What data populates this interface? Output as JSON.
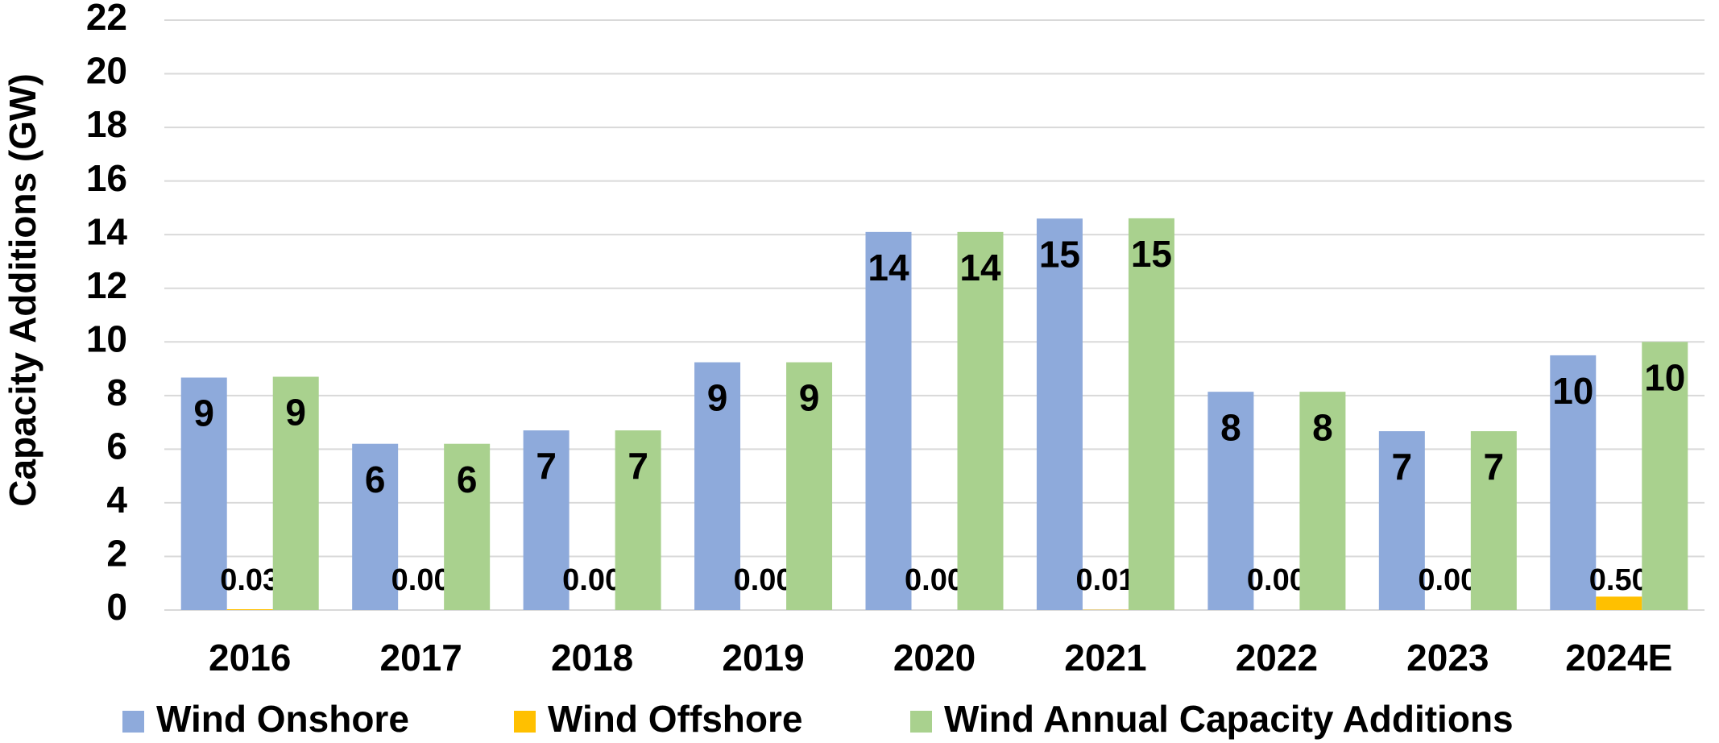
{
  "chart_data": {
    "type": "bar",
    "y_label": "Capacity Additions (GW)",
    "categories": [
      "2016",
      "2017",
      "2018",
      "2019",
      "2020",
      "2021",
      "2022",
      "2023",
      "2024E"
    ],
    "series": [
      {
        "name": "Wind Onshore",
        "color": "#8eaadb",
        "values": [
          8.67,
          6.2,
          6.7,
          9.24,
          14.1,
          14.6,
          8.14,
          6.67,
          9.5
        ],
        "value_labels": [
          "9",
          "6",
          "7",
          "9",
          "14",
          "15",
          "8",
          "7",
          "10"
        ]
      },
      {
        "name": "Wind Offshore",
        "color": "#ffc000",
        "values": [
          0.03,
          0,
          0,
          0,
          0,
          0.01,
          0,
          0,
          0.5
        ],
        "value_labels": [
          "0.03",
          "0.00",
          "0.00",
          "0.00",
          "0.00",
          "0.01",
          "0.00",
          "0.00",
          "0.50"
        ]
      },
      {
        "name": "Wind Annual Capacity Additions",
        "color": "#a9d18e",
        "values": [
          8.7,
          6.2,
          6.7,
          9.24,
          14.1,
          14.61,
          8.14,
          6.67,
          10.0
        ],
        "value_labels": [
          "9",
          "6",
          "7",
          "9",
          "14",
          "15",
          "8",
          "7",
          "10"
        ]
      }
    ],
    "ylim": [
      0,
      22
    ],
    "yticks": [
      0,
      2,
      4,
      6,
      8,
      10,
      12,
      14,
      16,
      18,
      20,
      22
    ],
    "grid": true,
    "legend": "bottom"
  }
}
